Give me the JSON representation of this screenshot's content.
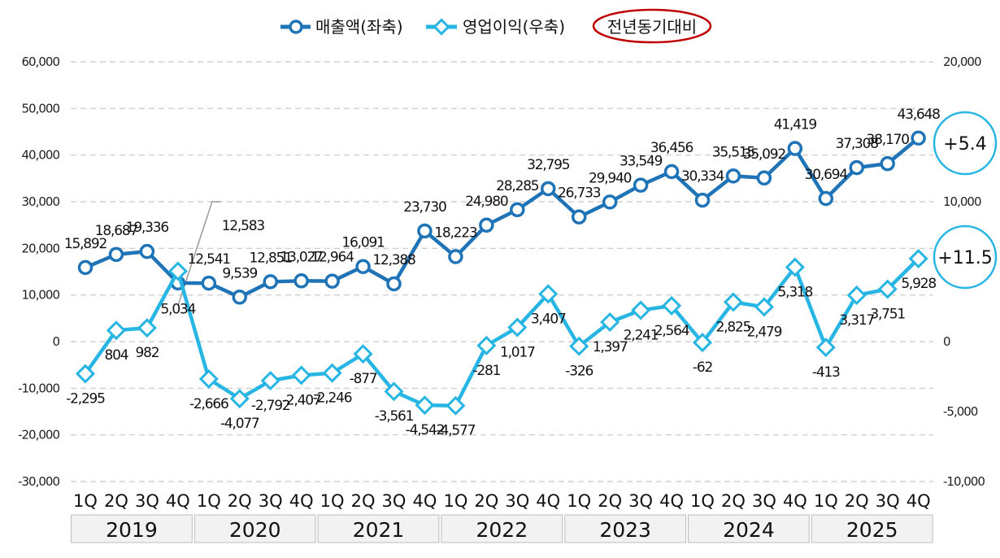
{
  "legend": {
    "revenue": "매출액(좌축)",
    "op": "영업이익(우축)",
    "yoy": "전년동기대비"
  },
  "colors": {
    "revenue": "#1f73b7",
    "op": "#27b5e3",
    "yoy_ellipse": "#c00000",
    "grid": "#c8c8c8",
    "year_box": "#f2f2f2"
  },
  "chart_data": {
    "type": "line",
    "categories": [
      "1Q",
      "2Q",
      "3Q",
      "4Q",
      "1Q",
      "2Q",
      "3Q",
      "4Q",
      "1Q",
      "2Q",
      "3Q",
      "4Q",
      "1Q",
      "2Q",
      "3Q",
      "4Q",
      "1Q",
      "2Q",
      "3Q",
      "4Q",
      "1Q",
      "2Q",
      "3Q",
      "4Q",
      "1Q",
      "2Q",
      "3Q",
      "4Q"
    ],
    "years": [
      "2019",
      "2020",
      "2021",
      "2022",
      "2023",
      "2024",
      "2025"
    ],
    "series": [
      {
        "name": "매출액(좌축)",
        "axis": "left",
        "values": [
          15892,
          18687,
          19336,
          12583,
          12541,
          9539,
          12851,
          13027,
          12964,
          16091,
          12388,
          23730,
          18223,
          24980,
          28285,
          32795,
          26733,
          29940,
          33549,
          36456,
          30334,
          35515,
          35092,
          41419,
          30694,
          37308,
          38170,
          43648
        ],
        "labels": [
          "15,892",
          "18,687",
          "19,336",
          "12,583",
          "12,541",
          "9,539",
          "12,851",
          "13,027",
          "12,964",
          "16,091",
          "12,388",
          "23,730",
          "18,223",
          "24,980",
          "28,285",
          "32,795",
          "26,733",
          "29,940",
          "33,549",
          "36,456",
          "30,334",
          "35,515",
          "35,092",
          "41,419",
          "30,694",
          "37,308",
          "38,170",
          "43,648"
        ]
      },
      {
        "name": "영업이익(우축)",
        "axis": "right",
        "values": [
          -2295,
          804,
          982,
          5034,
          -2666,
          -4077,
          -2792,
          -2407,
          -2246,
          -877,
          -3561,
          -4542,
          -4577,
          -281,
          1017,
          3407,
          -326,
          1397,
          2241,
          2564,
          -62,
          2825,
          2479,
          5318,
          -413,
          3317,
          3751,
          5928
        ],
        "labels": [
          "-2,295",
          "804",
          "982",
          "5,034",
          "-2,666",
          "-4,077",
          "-2,792",
          "-2,407",
          "-2,246",
          "-877",
          "-3,561",
          "-4,542",
          "-4,577",
          "-281",
          "1,017",
          "3,407",
          "-326",
          "1,397",
          "2,241",
          "2,564",
          "-62",
          "2,825",
          "2,479",
          "5,318",
          "-413",
          "3,317",
          "3,751",
          "5,928"
        ]
      }
    ],
    "y_left": {
      "min": -30000,
      "max": 60000,
      "ticks": [
        "60,000",
        "50,000",
        "40,000",
        "30,000",
        "20,000",
        "10,000",
        "0",
        "-10,000",
        "-20,000",
        "-30,000"
      ]
    },
    "y_right": {
      "min": -10000,
      "max": 20000,
      "ticks": [
        "20,000",
        "10,000",
        "0",
        "-5,000",
        "-10,000"
      ]
    },
    "grid": true,
    "legend_position": "top"
  },
  "badges": {
    "revenue_yoy": "+5.4",
    "op_yoy": "+11.5"
  }
}
